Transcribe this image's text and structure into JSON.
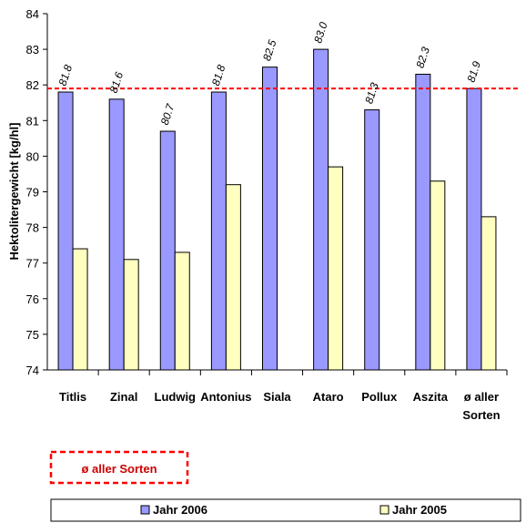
{
  "chart_data": {
    "type": "bar",
    "title": "",
    "xlabel": "",
    "ylabel": "Hektolitergewicht [kg/hl]",
    "ylim": [
      74,
      84
    ],
    "yticks": [
      74,
      75,
      76,
      77,
      78,
      79,
      80,
      81,
      82,
      83,
      84
    ],
    "grid": false,
    "categories": [
      [
        "Titlis"
      ],
      [
        "Zinal"
      ],
      [
        "Ludwig"
      ],
      [
        "Antonius"
      ],
      [
        "Siala"
      ],
      [
        "Ataro"
      ],
      [
        "Pollux"
      ],
      [
        "Aszita"
      ],
      [
        "ø aller",
        "Sorten"
      ]
    ],
    "series": [
      {
        "name": "Jahr 2006",
        "color": "#9999ff",
        "values": [
          81.8,
          81.6,
          80.7,
          81.8,
          82.5,
          83.0,
          81.3,
          82.3,
          81.9
        ],
        "data_labels": [
          "81.8",
          "81.6",
          "80.7",
          "81.8",
          "82.5",
          "83.0",
          "81.3",
          "82.3",
          "81.9"
        ]
      },
      {
        "name": "Jahr 2005",
        "color": "#ffffc0",
        "values": [
          77.4,
          77.1,
          77.3,
          79.2,
          null,
          79.7,
          null,
          79.3,
          78.3
        ]
      }
    ],
    "reference_line": {
      "label": "ø aller Sorten",
      "value": 81.9,
      "color": "#ff0000",
      "style": "dashed"
    },
    "legend_position": "bottom"
  }
}
